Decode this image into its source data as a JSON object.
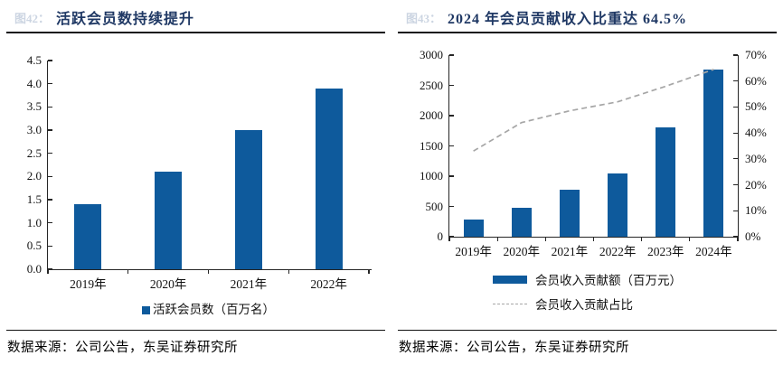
{
  "left_panel": {
    "figure_label": "图42：",
    "title": "活跃会员数持续提升",
    "source": "数据来源：公司公告，东吴证券研究所"
  },
  "right_panel": {
    "figure_label": "图43：",
    "title": "2024 年会员贡献收入比重达 64.5%",
    "source": "数据来源：公司公告，东吴证券研究所"
  },
  "colors": {
    "bar_blue": "#0E5A9C",
    "title_navy": "#1F3864",
    "dashed_gray": "#A6A6A6",
    "axis_black": "#262626"
  },
  "chart_data": [
    {
      "type": "bar",
      "title": "活跃会员数持续提升",
      "categories": [
        "2019年",
        "2020年",
        "2021年",
        "2022年"
      ],
      "values": [
        1.4,
        2.1,
        3.0,
        3.9
      ],
      "ylim": [
        0,
        4.5
      ],
      "ytick_labels": [
        "0.0",
        "0.5",
        "1.0",
        "1.5",
        "2.0",
        "2.5",
        "3.0",
        "3.5",
        "4.0",
        "4.5"
      ],
      "legend": [
        {
          "label": "活跃会员数（百万名）",
          "swatch": "square"
        }
      ],
      "grid": false,
      "legend_position": "bottom"
    },
    {
      "type": "bar+line",
      "title": "2024 年会员贡献收入比重达 64.5%",
      "categories": [
        "2019年",
        "2020年",
        "2021年",
        "2022年",
        "2023年",
        "2024年"
      ],
      "series": [
        {
          "name": "会员收入贡献额（百万元）",
          "type": "bar",
          "axis": "left",
          "values": [
            280,
            480,
            780,
            1050,
            1800,
            2765
          ]
        },
        {
          "name": "会员收入贡献占比",
          "type": "line",
          "style": "dashed",
          "axis": "right",
          "unit": "%",
          "values": [
            33,
            44,
            48.5,
            52,
            58,
            64.5
          ]
        }
      ],
      "left_axis": {
        "lim": [
          0,
          3000
        ],
        "tick_labels": [
          "0",
          "500",
          "1000",
          "1500",
          "2000",
          "2500",
          "3000"
        ]
      },
      "right_axis": {
        "lim": [
          0,
          70
        ],
        "tick_labels": [
          "0%",
          "10%",
          "20%",
          "30%",
          "40%",
          "50%",
          "60%",
          "70%"
        ]
      },
      "grid": false,
      "legend_position": "bottom"
    }
  ]
}
